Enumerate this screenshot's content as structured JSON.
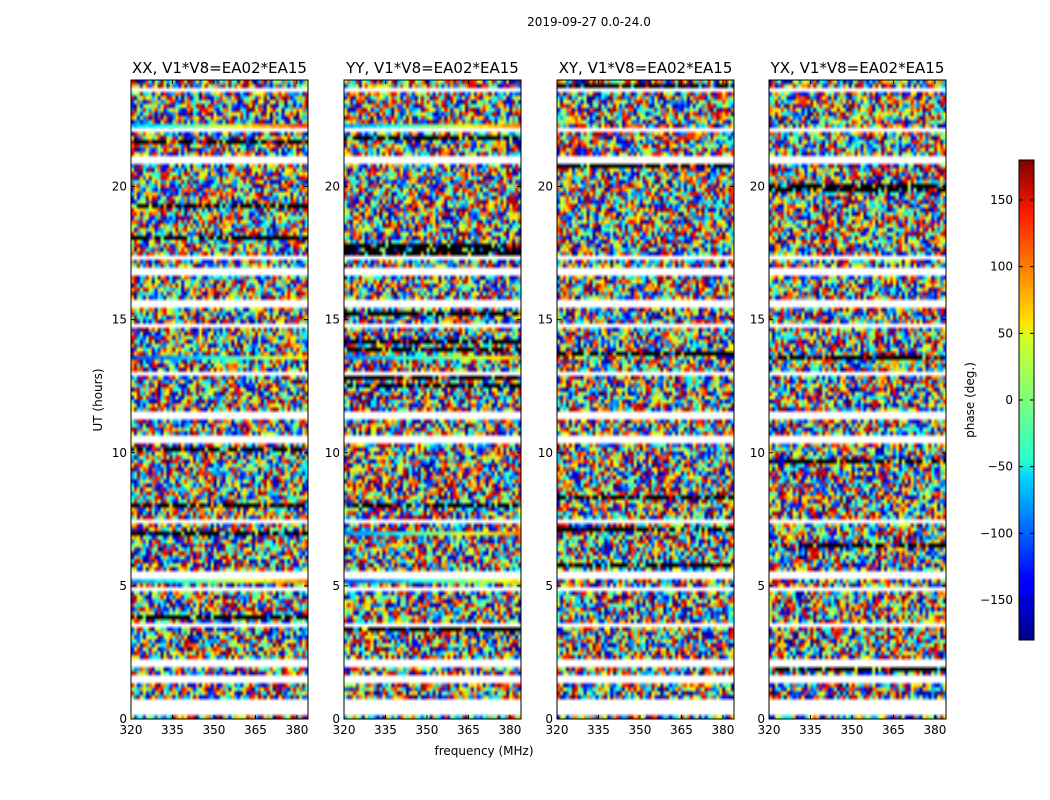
{
  "figure": {
    "suptitle": "2019-09-27 0.0-24.0",
    "xlabel": "frequency (MHz)",
    "ylabel": "UT (hours)",
    "colorbar_label": "phase (deg.)"
  },
  "chart_data": {
    "type": "heatmap",
    "x_ticks": [
      "320",
      "335",
      "350",
      "365",
      "380"
    ],
    "xlim": [
      320,
      384
    ],
    "y_ticks": [
      "0",
      "5",
      "10",
      "15",
      "20"
    ],
    "ylim": [
      0,
      24
    ],
    "colorbar": {
      "ticks": [
        "−150",
        "−100",
        "−50",
        "0",
        "50",
        "100",
        "150"
      ],
      "tick_values": [
        -150,
        -100,
        -50,
        0,
        50,
        100,
        150
      ],
      "range": [
        -180,
        180
      ],
      "colormap": "jet"
    },
    "panels": [
      {
        "title": "XX, V1*V8=EA02*EA15",
        "flagged_hours": [
          0.3,
          0.6,
          1.5,
          2.1,
          3.5,
          4.9,
          5.4,
          7.4,
          10.5,
          11.4,
          13.0,
          14.8,
          15.6,
          16.8,
          17.3,
          21.0,
          22.1,
          23.6
        ],
        "coherent_hours": [
          5.2,
          7.0,
          11.5,
          13.6,
          16.9,
          22.3
        ]
      },
      {
        "title": "YY, V1*V8=EA02*EA15",
        "flagged_hours": [
          0.3,
          0.6,
          1.5,
          2.1,
          3.5,
          4.9,
          5.4,
          7.4,
          10.5,
          11.4,
          13.0,
          14.8,
          15.6,
          16.8,
          17.3,
          21.0,
          22.1,
          23.6
        ],
        "coherent_hours": [
          5.2,
          7.0,
          11.5,
          13.6,
          16.9,
          22.3
        ]
      },
      {
        "title": "XY, V1*V8=EA02*EA15",
        "flagged_hours": [
          0.3,
          0.6,
          1.5,
          2.1,
          3.5,
          4.9,
          5.4,
          7.4,
          10.5,
          11.4,
          13.0,
          14.8,
          15.6,
          16.8,
          17.3,
          21.0,
          22.1,
          23.6
        ],
        "coherent_hours": []
      },
      {
        "title": "YX, V1*V8=EA02*EA15",
        "flagged_hours": [
          0.3,
          0.6,
          1.5,
          2.1,
          3.5,
          4.9,
          5.4,
          7.4,
          10.5,
          11.4,
          13.0,
          14.8,
          15.6,
          16.8,
          17.3,
          21.0,
          22.1,
          23.6
        ],
        "coherent_hours": []
      }
    ]
  }
}
